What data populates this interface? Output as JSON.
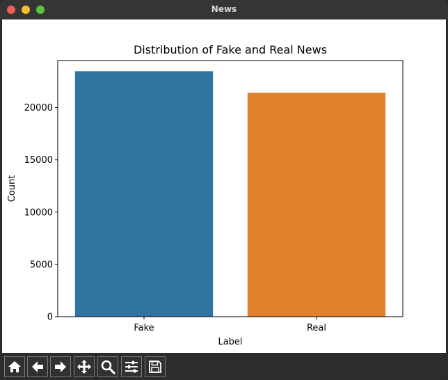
{
  "window": {
    "title": "News"
  },
  "chart_data": {
    "type": "bar",
    "title": "Distribution of Fake and Real News",
    "xlabel": "Label",
    "ylabel": "Count",
    "categories": [
      "Fake",
      "Real"
    ],
    "values": [
      23480,
      21420
    ],
    "colors": [
      "#3274a1",
      "#e1812c"
    ],
    "ylim": [
      0,
      24500
    ],
    "yticks": [
      0,
      5000,
      10000,
      15000,
      20000
    ],
    "ytick_labels": [
      "0",
      "5000",
      "10000",
      "15000",
      "20000"
    ],
    "grid": false
  },
  "toolbar": {
    "tools": [
      {
        "name": "home-icon"
      },
      {
        "name": "back-arrow-icon"
      },
      {
        "name": "forward-arrow-icon"
      },
      {
        "name": "pan-move-icon"
      },
      {
        "name": "zoom-magnifier-icon"
      },
      {
        "name": "configure-subplots-icon"
      },
      {
        "name": "save-figure-icon"
      }
    ]
  }
}
